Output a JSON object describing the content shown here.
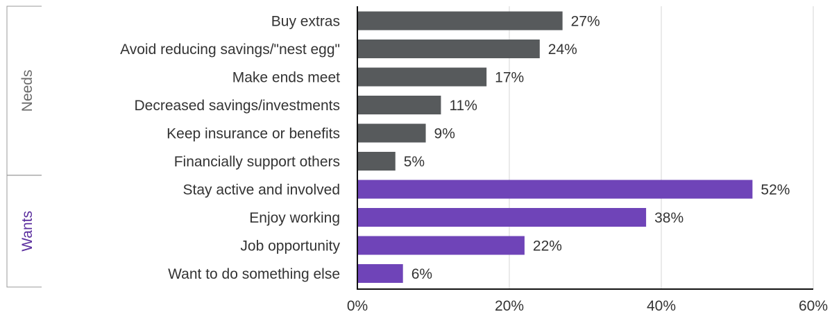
{
  "chart_data": {
    "type": "bar",
    "orientation": "horizontal",
    "title": "",
    "xlabel": "",
    "ylabel": "",
    "xlim": [
      0,
      60
    ],
    "x_ticks": [
      0,
      20,
      40,
      60
    ],
    "x_tick_labels": [
      "0%",
      "20%",
      "40%",
      "60%"
    ],
    "grid": "vertical",
    "groups": [
      {
        "name": "Needs",
        "color": "#575a5c",
        "label_color": "#6b6b6b",
        "categories": [
          "Buy extras",
          "Avoid reducing savings/\"nest egg\"",
          "Make ends meet",
          "Decreased savings/investments",
          "Keep insurance or benefits",
          "Financially support others"
        ],
        "values": [
          27,
          24,
          17,
          11,
          9,
          5
        ],
        "value_labels": [
          "27%",
          "24%",
          "17%",
          "11%",
          "9%",
          "5%"
        ]
      },
      {
        "name": "Wants",
        "color": "#6f44b8",
        "label_color": "#5b2f9e",
        "categories": [
          "Stay active and involved",
          "Enjoy working",
          "Job opportunity",
          "Want to do something else"
        ],
        "values": [
          52,
          38,
          22,
          6
        ],
        "value_labels": [
          "52%",
          "38%",
          "22%",
          "6%"
        ]
      }
    ]
  }
}
